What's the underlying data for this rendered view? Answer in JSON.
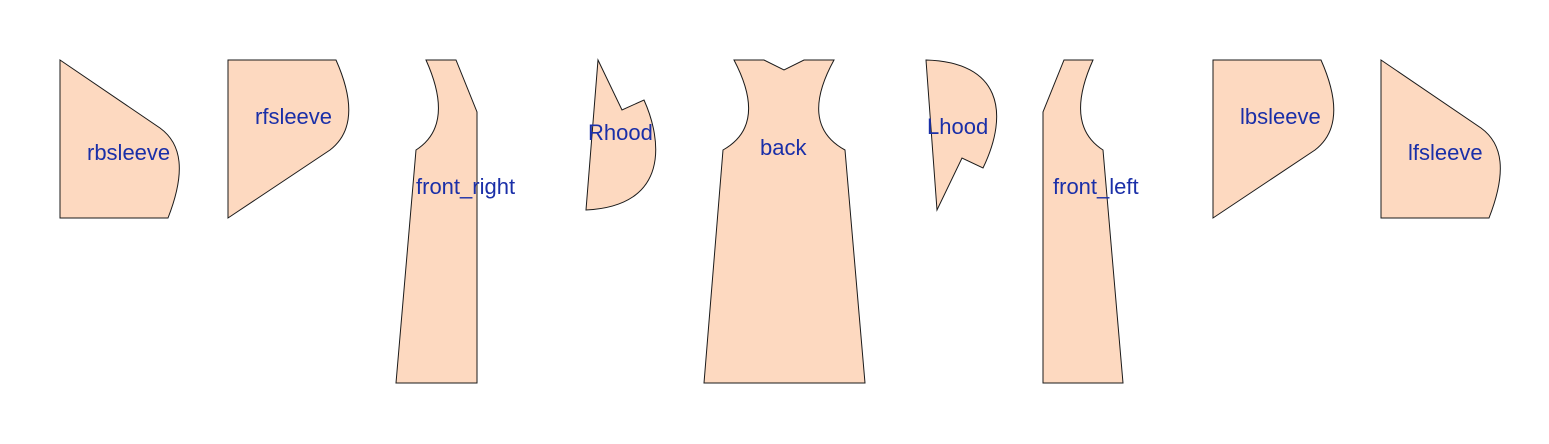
{
  "colors": {
    "panel_fill": "#fdd9c0",
    "panel_stroke": "#1a1a1a",
    "label_color": "#1a2fa8"
  },
  "panels": [
    {
      "id": "rbsleeve",
      "label": "rbsleeve"
    },
    {
      "id": "rfsleeve",
      "label": "rfsleeve"
    },
    {
      "id": "front_right",
      "label": "front_right"
    },
    {
      "id": "rhood",
      "label": "Rhood"
    },
    {
      "id": "back",
      "label": "back"
    },
    {
      "id": "lhood",
      "label": "Lhood"
    },
    {
      "id": "front_left",
      "label": "front_left"
    },
    {
      "id": "lbsleeve",
      "label": "lbsleeve"
    },
    {
      "id": "lfsleeve",
      "label": "lfsleeve"
    }
  ]
}
